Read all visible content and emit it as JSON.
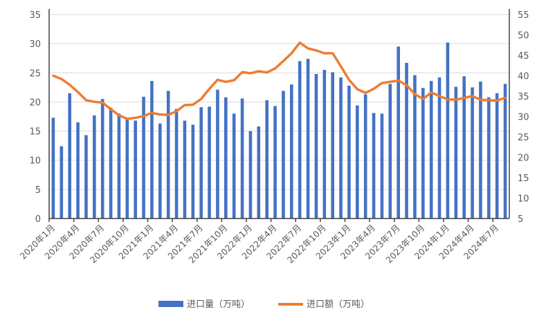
{
  "chart_data": {
    "type": "bar+line",
    "categories": [
      "2020年1月",
      "2020年2月",
      "2020年3月",
      "2020年4月",
      "2020年5月",
      "2020年6月",
      "2020年7月",
      "2020年8月",
      "2020年9月",
      "2020年10月",
      "2020年11月",
      "2020年12月",
      "2021年1月",
      "2021年2月",
      "2021年3月",
      "2021年4月",
      "2021年5月",
      "2021年6月",
      "2021年7月",
      "2021年8月",
      "2021年9月",
      "2021年10月",
      "2021年11月",
      "2021年12月",
      "2022年1月",
      "2022年2月",
      "2022年3月",
      "2022年4月",
      "2022年5月",
      "2022年6月",
      "2022年7月",
      "2022年8月",
      "2022年9月",
      "2022年10月",
      "2022年11月",
      "2022年12月",
      "2023年1月",
      "2023年2月",
      "2023年3月",
      "2023年4月",
      "2023年5月",
      "2023年6月",
      "2023年7月",
      "2023年8月",
      "2023年9月",
      "2023年10月",
      "2023年11月",
      "2023年12月",
      "2024年1月",
      "2024年2月",
      "2024年3月",
      "2024年4月",
      "2024年5月",
      "2024年6月",
      "2024年7月",
      "2024年8月"
    ],
    "tick_labels": [
      "2020年1月",
      "2020年4月",
      "2020年7月",
      "2020年10月",
      "2021年1月",
      "2021年4月",
      "2021年7月",
      "2021年10月",
      "2022年1月",
      "2022年4月",
      "2022年7月",
      "2022年10月",
      "2023年1月",
      "2023年4月",
      "2023年7月",
      "2023年10月",
      "2024年1月",
      "2024年4月",
      "2024年7月"
    ],
    "series": [
      {
        "name": "进口量（万吨）",
        "type": "bar",
        "axis": "left",
        "color": "#4472C4",
        "values": [
          17.3,
          12.4,
          21.5,
          16.5,
          14.3,
          17.7,
          20.5,
          19.0,
          18.0,
          17.0,
          16.8,
          20.9,
          23.6,
          16.3,
          21.9,
          18.8,
          16.8,
          16.1,
          19.1,
          19.2,
          22.1,
          20.8,
          18.0,
          20.6,
          15.0,
          15.8,
          20.3,
          19.3,
          21.9,
          23.0,
          27.0,
          27.4,
          24.8,
          25.5,
          25.1,
          24.2,
          22.8,
          19.4,
          21.3,
          18.1,
          18.0,
          23.1,
          29.5,
          26.7,
          24.6,
          22.4,
          23.6,
          24.2,
          30.2,
          22.6,
          24.4,
          22.5,
          23.5,
          20.8,
          21.5,
          23.1
        ]
      },
      {
        "name": "进口额（万吨）",
        "type": "line",
        "axis": "right",
        "color": "#ED7D31",
        "values": [
          40.0,
          39.2,
          37.8,
          36.0,
          34.0,
          33.6,
          33.4,
          31.8,
          30.3,
          29.4,
          29.7,
          30.1,
          30.9,
          30.5,
          30.4,
          31.3,
          32.8,
          32.9,
          34.3,
          36.8,
          39.0,
          38.5,
          38.9,
          40.9,
          40.6,
          41.1,
          40.8,
          41.8,
          43.6,
          45.5,
          48.1,
          46.7,
          46.2,
          45.5,
          45.5,
          42.3,
          39.0,
          36.7,
          35.8,
          36.8,
          38.2,
          38.5,
          38.8,
          37.7,
          35.5,
          34.3,
          35.9,
          35.0,
          34.2,
          34.1,
          34.6,
          35.0,
          34.1,
          34.0,
          33.9,
          34.6
        ]
      }
    ],
    "left_axis": {
      "ylim": [
        0,
        35
      ],
      "ticks": [
        "0",
        "5",
        "10",
        "15",
        "20",
        "25",
        "30",
        "35"
      ]
    },
    "right_axis": {
      "ylim": [
        5,
        55
      ],
      "ticks": [
        "5",
        "10",
        "15",
        "20",
        "25",
        "30",
        "35",
        "40",
        "45",
        "50",
        "55"
      ]
    },
    "grid": true,
    "legend_position": "bottom"
  }
}
